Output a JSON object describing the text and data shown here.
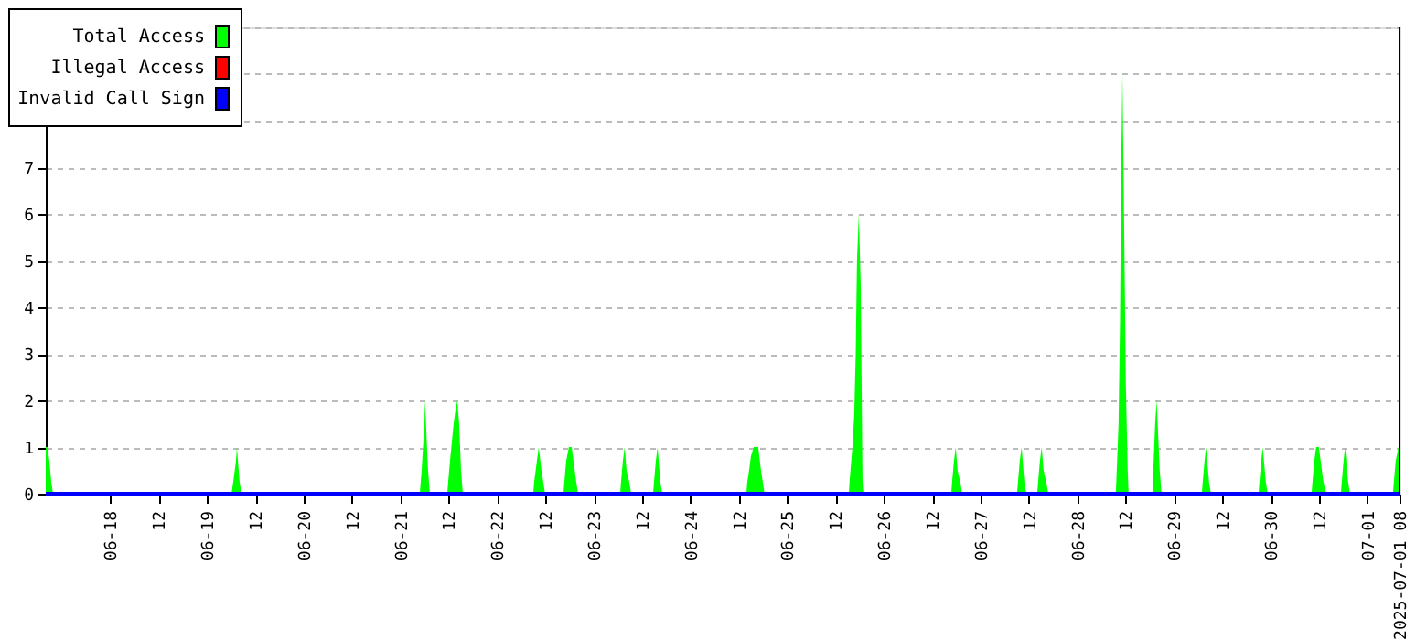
{
  "chart_data": {
    "type": "area",
    "xlim": [
      "2025-06-17T08:00",
      "2025-07-01T08:00"
    ],
    "xticks": [
      {
        "value": "2025-06-18T00:00",
        "label": "06-18"
      },
      {
        "value": "2025-06-18T12:00",
        "label": "12"
      },
      {
        "value": "2025-06-19T00:00",
        "label": "06-19"
      },
      {
        "value": "2025-06-19T12:00",
        "label": "12"
      },
      {
        "value": "2025-06-20T00:00",
        "label": "06-20"
      },
      {
        "value": "2025-06-20T12:00",
        "label": "12"
      },
      {
        "value": "2025-06-21T00:00",
        "label": "06-21"
      },
      {
        "value": "2025-06-21T12:00",
        "label": "12"
      },
      {
        "value": "2025-06-22T00:00",
        "label": "06-22"
      },
      {
        "value": "2025-06-22T12:00",
        "label": "12"
      },
      {
        "value": "2025-06-23T00:00",
        "label": "06-23"
      },
      {
        "value": "2025-06-23T12:00",
        "label": "12"
      },
      {
        "value": "2025-06-24T00:00",
        "label": "06-24"
      },
      {
        "value": "2025-06-24T12:00",
        "label": "12"
      },
      {
        "value": "2025-06-25T00:00",
        "label": "06-25"
      },
      {
        "value": "2025-06-25T12:00",
        "label": "12"
      },
      {
        "value": "2025-06-26T00:00",
        "label": "06-26"
      },
      {
        "value": "2025-06-26T12:00",
        "label": "12"
      },
      {
        "value": "2025-06-27T00:00",
        "label": "06-27"
      },
      {
        "value": "2025-06-27T12:00",
        "label": "12"
      },
      {
        "value": "2025-06-28T00:00",
        "label": "06-28"
      },
      {
        "value": "2025-06-28T12:00",
        "label": "12"
      },
      {
        "value": "2025-06-29T00:00",
        "label": "06-29"
      },
      {
        "value": "2025-06-29T12:00",
        "label": "12"
      },
      {
        "value": "2025-06-30T00:00",
        "label": "06-30"
      },
      {
        "value": "2025-06-30T12:00",
        "label": "12"
      },
      {
        "value": "2025-07-01T00:00",
        "label": "07-01"
      },
      {
        "value": "2025-07-01T08:00",
        "label": "2025-07-01 08"
      }
    ],
    "ylim": [
      0,
      10
    ],
    "yticks": [
      0,
      1,
      2,
      3,
      4,
      5,
      6,
      7,
      {
        "value": 8,
        "label": null
      },
      {
        "value": 9,
        "label": null
      },
      {
        "value": 10,
        "label": null
      }
    ],
    "grid": "y",
    "legend": "top left",
    "series": [
      {
        "name": "Total Access",
        "color": "#00ff00",
        "x": [
          "2025-06-17T08:00",
          "2025-06-17T08:27",
          "2025-06-17T08:54",
          "2025-06-17T09:22",
          "2025-06-17T09:49",
          "2025-06-19T06:05",
          "2025-06-19T06:32",
          "2025-06-19T07:13",
          "2025-06-19T07:26",
          "2025-06-19T08:07",
          "2025-06-19T08:35",
          "2025-06-21T04:50",
          "2025-06-21T05:18",
          "2025-06-21T05:59",
          "2025-06-21T06:07",
          "2025-06-21T06:53",
          "2025-06-21T07:20",
          "2025-06-21T11:39",
          "2025-06-21T11:53",
          "2025-06-21T12:20",
          "2025-06-21T12:47",
          "2025-06-21T13:14",
          "2025-06-21T13:42",
          "2025-06-21T14:09",
          "2025-06-21T14:36",
          "2025-06-21T15:04",
          "2025-06-21T15:31",
          "2025-06-22T08:59",
          "2025-06-22T09:13",
          "2025-06-22T09:54",
          "2025-06-22T10:21",
          "2025-06-22T11:02",
          "2025-06-22T11:29",
          "2025-06-22T11:56",
          "2025-06-22T16:29",
          "2025-06-22T16:43",
          "2025-06-22T17:10",
          "2025-06-22T17:50",
          "2025-06-22T18:32",
          "2025-06-22T18:59",
          "2025-06-22T19:40",
          "2025-06-22T20:07",
          "2025-06-23T06:34",
          "2025-06-23T06:47",
          "2025-06-23T07:14",
          "2025-06-23T07:41",
          "2025-06-23T08:09",
          "2025-06-23T08:50",
          "2025-06-23T09:17",
          "2025-06-23T14:44",
          "2025-06-23T14:58",
          "2025-06-23T15:25",
          "2025-06-23T15:52",
          "2025-06-23T16:32",
          "2025-06-23T17:00",
          "2025-06-24T13:53",
          "2025-06-24T14:07",
          "2025-06-24T14:34",
          "2025-06-24T15:01",
          "2025-06-24T15:42",
          "2025-06-24T16:50",
          "2025-06-24T17:31",
          "2025-06-24T17:58",
          "2025-06-24T18:25",
          "2025-06-25T15:19",
          "2025-06-25T15:32",
          "2025-06-25T16:13",
          "2025-06-25T16:40",
          "2025-06-25T17:02",
          "2025-06-25T17:21",
          "2025-06-25T17:48",
          "2025-06-25T18:16",
          "2025-06-25T18:43",
          "2025-06-25T18:56",
          "2025-06-26T16:44",
          "2025-06-26T16:57",
          "2025-06-26T17:25",
          "2025-06-26T17:52",
          "2025-06-26T18:19",
          "2025-06-26T19:00",
          "2025-06-26T19:27",
          "2025-06-27T09:04",
          "2025-06-27T09:18",
          "2025-06-27T09:45",
          "2025-06-27T10:13",
          "2025-06-27T10:53",
          "2025-06-27T11:21",
          "2025-06-27T14:04",
          "2025-06-27T14:18",
          "2025-06-27T14:45",
          "2025-06-27T15:12",
          "2025-06-27T15:39",
          "2025-06-27T16:20",
          "2025-06-27T16:48",
          "2025-06-28T09:35",
          "2025-06-28T09:49",
          "2025-06-28T10:16",
          "2025-06-28T10:38",
          "2025-06-28T10:57",
          "2025-06-28T11:13",
          "2025-06-28T11:32",
          "2025-06-28T12:05",
          "2025-06-28T12:32",
          "2025-06-28T12:46",
          "2025-06-28T18:40",
          "2025-06-28T18:53",
          "2025-06-28T19:21",
          "2025-06-28T19:43",
          "2025-06-28T20:29",
          "2025-06-28T20:56",
          "2025-06-29T06:56",
          "2025-06-29T07:09",
          "2025-06-29T07:37",
          "2025-06-29T07:58",
          "2025-06-29T08:44",
          "2025-06-29T09:12",
          "2025-06-29T21:00",
          "2025-06-29T21:14",
          "2025-06-29T21:41",
          "2025-06-29T22:03",
          "2025-06-29T22:49",
          "2025-06-29T23:16",
          "2025-06-30T10:10",
          "2025-06-30T10:24",
          "2025-06-30T10:51",
          "2025-06-30T11:18",
          "2025-06-30T11:59",
          "2025-06-30T12:26",
          "2025-06-30T13:07",
          "2025-06-30T13:48",
          "2025-06-30T17:26",
          "2025-06-30T17:40",
          "2025-06-30T18:07",
          "2025-06-30T18:29",
          "2025-06-30T19:15",
          "2025-06-30T19:42",
          "2025-07-01T06:22",
          "2025-07-01T06:36",
          "2025-07-01T07:03",
          "2025-07-01T07:44",
          "2025-07-01T08:00"
        ],
        "values": [
          1,
          1,
          0.7,
          0.25,
          0,
          0,
          0.25,
          0.7,
          1,
          0.25,
          0,
          0,
          0.5,
          1.5,
          2,
          0.5,
          0,
          0,
          0.25,
          0.7,
          1.1,
          1.5,
          1.8,
          2,
          1.5,
          0.5,
          0,
          0,
          0.25,
          0.7,
          1,
          0.5,
          0.25,
          0,
          0,
          0.25,
          0.7,
          1,
          1,
          0.7,
          0.25,
          0,
          0,
          0.25,
          0.7,
          1,
          0.5,
          0.25,
          0,
          0,
          0.25,
          0.7,
          1,
          0.25,
          0,
          0,
          0.25,
          0.5,
          0.8,
          1,
          1,
          0.5,
          0.25,
          0,
          0,
          0.3,
          1,
          1.7,
          3,
          5,
          6,
          4.5,
          0.3,
          0,
          0,
          0.25,
          0.7,
          1,
          0.5,
          0.25,
          0,
          0,
          0.25,
          0.7,
          1,
          0.25,
          0,
          0,
          0.25,
          0.7,
          1,
          0.5,
          0.25,
          0,
          0,
          0.5,
          1.5,
          3.7,
          7.2,
          9,
          6.7,
          2.3,
          0.5,
          0,
          0,
          0.5,
          1.5,
          2,
          0.5,
          0,
          0,
          0.25,
          0.7,
          1,
          0.25,
          0,
          0,
          0.25,
          0.7,
          1,
          0.25,
          0,
          0,
          0.25,
          0.7,
          1,
          1,
          0.7,
          0.25,
          0,
          0,
          0.25,
          0.7,
          1,
          0.25,
          0,
          0,
          0.25,
          0.7,
          1,
          1
        ]
      },
      {
        "name": "Illegal Access",
        "color": "#ff0000",
        "type": "line"
      },
      {
        "name": "Invalid Call Sign",
        "color": "#0000ff",
        "type": "line",
        "x": [
          "2025-06-17T08:00",
          "2025-07-01T08:00"
        ],
        "values": [
          0,
          0
        ]
      }
    ]
  }
}
